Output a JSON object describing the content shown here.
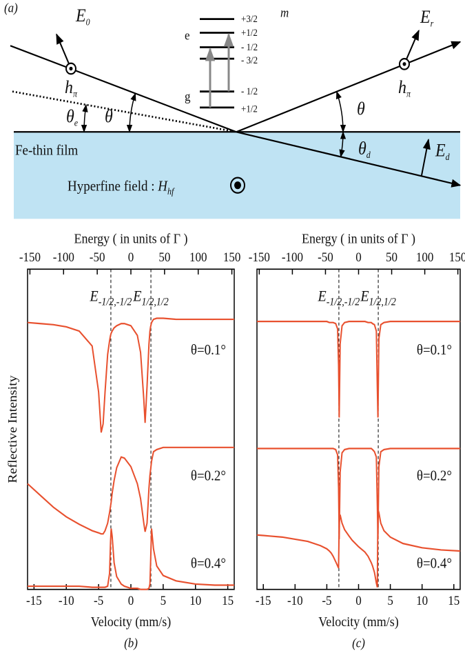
{
  "diagram": {
    "panel_label": "(a)",
    "incident_field": {
      "main": "E",
      "sub": "0"
    },
    "reflected_field": {
      "main": "E",
      "sub": "r"
    },
    "refracted_field": {
      "main": "E",
      "sub": "d"
    },
    "polarization_left": {
      "main": "h",
      "sub": "π"
    },
    "polarization_right": {
      "main": "h",
      "sub": "π"
    },
    "angle_incident": "θ",
    "angle_reflected": "θ",
    "angle_e": {
      "main": "θ",
      "sub": "e"
    },
    "angle_d": {
      "main": "θ",
      "sub": "d"
    },
    "film_label": "Fe-thin film",
    "hyperfine_label": {
      "text": "Hyperfine field : ",
      "main": "H",
      "sub": "hf"
    },
    "levels": {
      "quantum_number": "m",
      "excited": "e",
      "ground": "g",
      "excited_m": [
        "+3/2",
        "+1/2",
        "- 1/2",
        "- 3/2"
      ],
      "ground_m": [
        "- 1/2",
        "+1/2"
      ]
    }
  },
  "chart_data": [
    {
      "type": "line",
      "caption": "(b)",
      "xlabel": "Velocity (mm/s)",
      "x2label": "Energy ( in units of Γ )",
      "ylabel": "Reflective Intensity",
      "xlim": [
        -16,
        16
      ],
      "xticks": [
        -15,
        -10,
        -5,
        0,
        5,
        10,
        15
      ],
      "x2lim": [
        -153.5,
        153.5
      ],
      "x2ticks": [
        -150,
        -100,
        -50,
        0,
        50,
        100,
        150
      ],
      "ylim": [
        0,
        3
      ],
      "vlines": [
        -3.1,
        3.1
      ],
      "vline_labels": [
        {
          "main": "E",
          "sub": "-1/2,-1/2"
        },
        {
          "main": "E",
          "sub": "1/2,1/2"
        }
      ],
      "x": [
        -16,
        -14,
        -12,
        -10,
        -8,
        -6,
        -5,
        -4.6,
        -4.3,
        -4,
        -3.6,
        -3.3,
        -3.15,
        -3.05,
        -2.9,
        -2.6,
        -2.2,
        -1.5,
        -1,
        0,
        1,
        1.5,
        2,
        2.2,
        2.5,
        2.8,
        2.95,
        3.05,
        3.2,
        3.5,
        4,
        5,
        7,
        10,
        13,
        16
      ],
      "series": [
        {
          "name": "θ=0.1°",
          "color": "#e8502e",
          "values": [
            2.5,
            2.49,
            2.48,
            2.46,
            2.42,
            2.28,
            1.85,
            1.47,
            1.55,
            1.85,
            2.2,
            2.33,
            2.38,
            2.4,
            2.42,
            2.45,
            2.47,
            2.49,
            2.49,
            2.47,
            2.38,
            2.22,
            1.78,
            1.56,
            1.9,
            2.3,
            2.42,
            2.46,
            2.5,
            2.53,
            2.54,
            2.54,
            2.53,
            2.53,
            2.53,
            2.53
          ]
        },
        {
          "name": "θ=0.2°",
          "color": "#e8502e",
          "values": [
            0.99,
            0.88,
            0.77,
            0.68,
            0.61,
            0.55,
            0.53,
            0.52,
            0.52,
            0.55,
            0.62,
            0.72,
            0.78,
            0.82,
            0.9,
            1.02,
            1.14,
            1.24,
            1.23,
            1.15,
            0.99,
            0.85,
            0.62,
            0.54,
            0.62,
            0.95,
            1.07,
            1.12,
            1.2,
            1.29,
            1.31,
            1.33,
            1.33,
            1.33,
            1.33,
            1.33
          ]
        },
        {
          "name": "θ=0.4°",
          "color": "#e8502e",
          "values": [
            0.03,
            0.03,
            0.03,
            0.03,
            0.03,
            0.02,
            0.02,
            0.02,
            0.02,
            0.02,
            0.03,
            0.15,
            0.45,
            0.57,
            0.5,
            0.25,
            0.12,
            0.05,
            0.03,
            0.01,
            0.01,
            0,
            0,
            0,
            0,
            0.01,
            0.05,
            0.25,
            0.57,
            0.38,
            0.22,
            0.13,
            0.08,
            0.05,
            0.04,
            0.04
          ]
        }
      ]
    },
    {
      "type": "line",
      "caption": "(c)",
      "xlabel": "Velocity (mm/s)",
      "x2label": "Energy ( in units of Γ )",
      "xlim": [
        -16,
        16
      ],
      "xticks": [
        -15,
        -10,
        -5,
        0,
        5,
        10,
        15
      ],
      "x2lim": [
        -153.5,
        153.5
      ],
      "x2ticks": [
        -150,
        -100,
        -50,
        0,
        50,
        100,
        150
      ],
      "ylim": [
        0,
        3
      ],
      "vlines": [
        -3.1,
        3.1
      ],
      "vline_labels": [
        {
          "main": "E",
          "sub": "-1/2,-1/2"
        },
        {
          "main": "E",
          "sub": "1/2,1/2"
        }
      ],
      "x": [
        -16,
        -14,
        -12,
        -10,
        -8,
        -6,
        -5,
        -4.6,
        -4.3,
        -4,
        -3.6,
        -3.3,
        -3.15,
        -3.05,
        -2.9,
        -2.6,
        -2.2,
        -1.5,
        -1,
        0,
        1,
        1.5,
        2,
        2.2,
        2.5,
        2.8,
        2.95,
        3.05,
        3.2,
        3.5,
        4,
        5,
        7,
        10,
        13,
        16
      ],
      "series": [
        {
          "name": "θ=0.1°",
          "color": "#e8502e",
          "values": [
            2.51,
            2.51,
            2.51,
            2.51,
            2.51,
            2.51,
            2.51,
            2.5,
            2.5,
            2.5,
            2.49,
            2.44,
            2.1,
            1.61,
            2.3,
            2.47,
            2.5,
            2.51,
            2.51,
            2.51,
            2.51,
            2.5,
            2.5,
            2.49,
            2.48,
            2.42,
            1.9,
            1.61,
            2.35,
            2.48,
            2.5,
            2.51,
            2.51,
            2.51,
            2.51,
            2.51
          ]
        },
        {
          "name": "θ=0.2°",
          "color": "#e8502e",
          "values": [
            1.32,
            1.32,
            1.32,
            1.32,
            1.32,
            1.32,
            1.32,
            1.32,
            1.32,
            1.32,
            1.31,
            1.26,
            0.95,
            0.47,
            1.1,
            1.28,
            1.31,
            1.32,
            1.32,
            1.32,
            1.32,
            1.32,
            1.32,
            1.31,
            1.29,
            1.24,
            0.8,
            0.47,
            1.15,
            1.29,
            1.31,
            1.32,
            1.32,
            1.32,
            1.32,
            1.32
          ]
        },
        {
          "name": "θ=0.4°",
          "color": "#e8502e",
          "values": [
            0.51,
            0.5,
            0.49,
            0.47,
            0.45,
            0.41,
            0.38,
            0.36,
            0.34,
            0.31,
            0.26,
            0.22,
            0.2,
            0.62,
            0.7,
            0.62,
            0.56,
            0.5,
            0.46,
            0.4,
            0.35,
            0.31,
            0.25,
            0.22,
            0.16,
            0.06,
            0.02,
            0.75,
            0.72,
            0.62,
            0.55,
            0.49,
            0.43,
            0.39,
            0.37,
            0.36
          ]
        }
      ]
    }
  ]
}
